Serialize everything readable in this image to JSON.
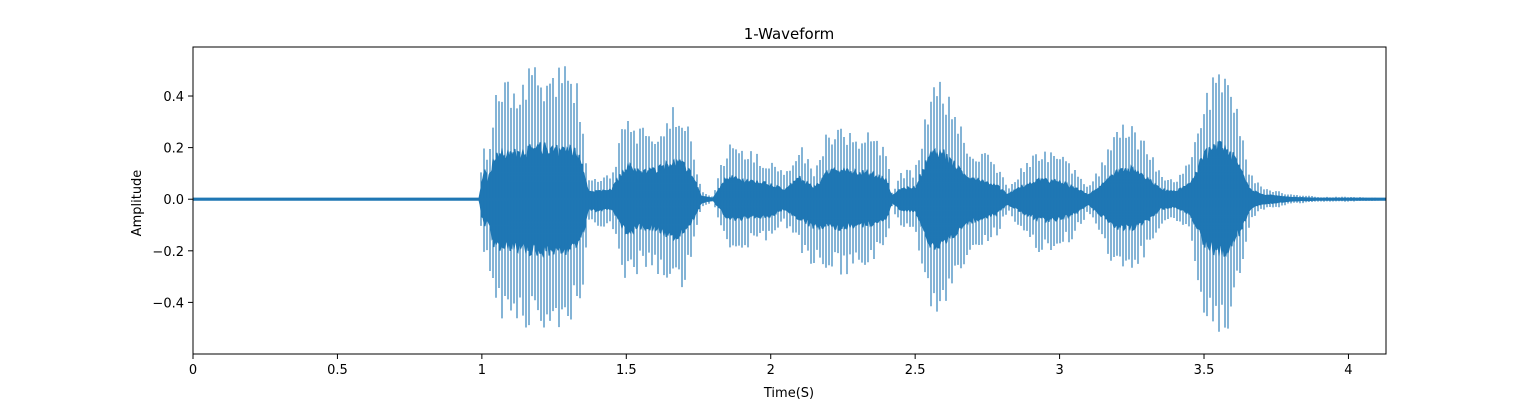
{
  "chart_data": {
    "type": "line",
    "title": "1-Waveform",
    "xlabel": "Time(S)",
    "ylabel": "Amplitude",
    "xlim": [
      0,
      4.13
    ],
    "ylim": [
      -0.6,
      0.59
    ],
    "xticks": [
      0,
      0.5,
      1,
      1.5,
      2,
      2.5,
      3,
      3.5,
      4
    ],
    "xtick_labels": [
      "0",
      "0.5",
      "1",
      "1.5",
      "2",
      "2.5",
      "3",
      "3.5",
      "4"
    ],
    "yticks": [
      -0.4,
      -0.2,
      0.0,
      0.2,
      0.4
    ],
    "ytick_labels": [
      "−0.4",
      "−0.2",
      "0.0",
      "0.2",
      "0.4"
    ],
    "grid": false,
    "series": [
      {
        "color": "#1f77b4",
        "envelope": {
          "time": [
            0.0,
            0.99,
            1.01,
            1.02,
            1.04,
            1.07,
            1.1,
            1.15,
            1.2,
            1.25,
            1.3,
            1.33,
            1.35,
            1.37,
            1.4,
            1.45,
            1.5,
            1.55,
            1.6,
            1.65,
            1.68,
            1.72,
            1.76,
            1.8,
            1.85,
            1.9,
            1.95,
            2.0,
            2.05,
            2.1,
            2.15,
            2.2,
            2.25,
            2.3,
            2.35,
            2.4,
            2.42,
            2.45,
            2.5,
            2.55,
            2.58,
            2.6,
            2.63,
            2.67,
            2.72,
            2.78,
            2.82,
            2.87,
            2.93,
            3.0,
            3.05,
            3.1,
            3.15,
            3.2,
            3.25,
            3.3,
            3.35,
            3.4,
            3.45,
            3.5,
            3.55,
            3.58,
            3.62,
            3.66,
            3.7,
            3.8,
            3.9,
            4.0,
            4.1,
            4.13
          ],
          "upper": [
            0.004,
            0.005,
            0.32,
            0.18,
            0.4,
            0.48,
            0.46,
            0.5,
            0.53,
            0.52,
            0.53,
            0.46,
            0.33,
            0.08,
            0.08,
            0.1,
            0.35,
            0.28,
            0.3,
            0.37,
            0.38,
            0.3,
            0.03,
            0.01,
            0.23,
            0.2,
            0.18,
            0.15,
            0.1,
            0.22,
            0.12,
            0.28,
            0.3,
            0.28,
            0.26,
            0.2,
            0.03,
            0.11,
            0.12,
            0.45,
            0.5,
            0.47,
            0.37,
            0.25,
            0.2,
            0.15,
            0.05,
            0.13,
            0.2,
            0.18,
            0.12,
            0.05,
            0.15,
            0.28,
            0.31,
            0.22,
            0.1,
            0.08,
            0.15,
            0.45,
            0.54,
            0.52,
            0.35,
            0.1,
            0.05,
            0.02,
            0.01,
            0.01,
            0.006,
            0.004
          ],
          "lower": [
            -0.004,
            -0.005,
            -0.32,
            -0.2,
            -0.45,
            -0.5,
            -0.48,
            -0.52,
            -0.53,
            -0.52,
            -0.52,
            -0.45,
            -0.35,
            -0.1,
            -0.12,
            -0.1,
            -0.35,
            -0.28,
            -0.3,
            -0.38,
            -0.37,
            -0.28,
            -0.04,
            -0.01,
            -0.2,
            -0.2,
            -0.18,
            -0.17,
            -0.1,
            -0.2,
            -0.28,
            -0.28,
            -0.3,
            -0.27,
            -0.25,
            -0.2,
            -0.03,
            -0.12,
            -0.12,
            -0.45,
            -0.5,
            -0.48,
            -0.38,
            -0.25,
            -0.2,
            -0.15,
            -0.05,
            -0.13,
            -0.22,
            -0.2,
            -0.15,
            -0.05,
            -0.18,
            -0.3,
            -0.3,
            -0.22,
            -0.1,
            -0.08,
            -0.15,
            -0.45,
            -0.55,
            -0.52,
            -0.35,
            -0.1,
            -0.05,
            -0.02,
            -0.01,
            -0.01,
            -0.006,
            -0.004
          ]
        }
      }
    ]
  }
}
